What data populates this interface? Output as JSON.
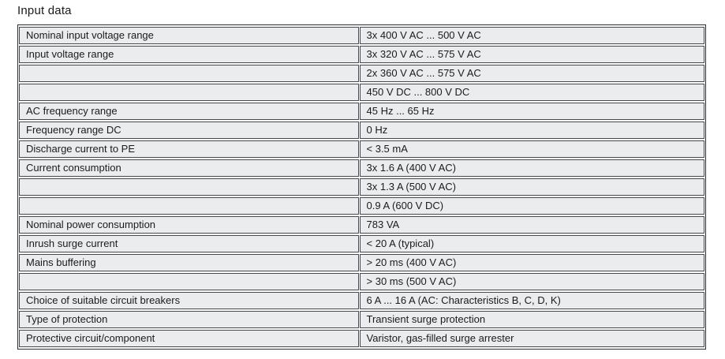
{
  "section": {
    "title": "Input data"
  },
  "table": {
    "rows": [
      {
        "label": "Nominal input voltage range",
        "value": "3x 400 V AC ... 500 V AC"
      },
      {
        "label": "Input voltage range",
        "value": "3x 320 V AC ... 575 V AC"
      },
      {
        "label": "",
        "value": "2x 360 V AC ... 575 V AC"
      },
      {
        "label": "",
        "value": "450 V DC ... 800 V DC"
      },
      {
        "label": "AC frequency range",
        "value": "45 Hz ... 65 Hz"
      },
      {
        "label": "Frequency range DC",
        "value": "0 Hz"
      },
      {
        "label": "Discharge current to PE",
        "value": "< 3.5 mA"
      },
      {
        "label": "Current consumption",
        "value": "3x 1.6 A (400 V AC)"
      },
      {
        "label": "",
        "value": "3x 1.3 A (500 V AC)"
      },
      {
        "label": "",
        "value": "0.9 A (600 V DC)"
      },
      {
        "label": "Nominal power consumption",
        "value": "783 VA"
      },
      {
        "label": "Inrush surge current",
        "value": "< 20 A (typical)"
      },
      {
        "label": "Mains buffering",
        "value": "> 20 ms (400 V AC)"
      },
      {
        "label": "",
        "value": "> 30 ms (500 V AC)"
      },
      {
        "label": "Choice of suitable circuit breakers",
        "value": "6 A ... 16 A (AC: Characteristics B, C, D, K)"
      },
      {
        "label": "Type of protection",
        "value": "Transient surge protection"
      },
      {
        "label": "Protective circuit/component",
        "value": "Varistor, gas-filled surge arrester"
      }
    ]
  },
  "colors": {
    "row_fill": "#eaecee",
    "cell_border": "#45484c",
    "outer_border": "#2c2f32",
    "text": "#1b1b1b",
    "page_background": "#ffffff"
  }
}
